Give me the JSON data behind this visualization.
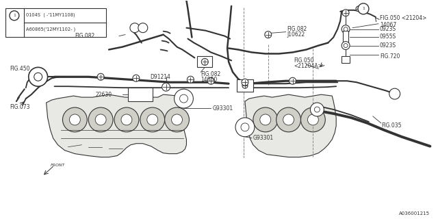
{
  "bg_color": "#ffffff",
  "line_color": "#333333",
  "lw_pipe": 1.8,
  "lw_thin": 0.8,
  "lw_dashed": 0.7,
  "part_number": "A036001215",
  "legend": {
    "line1": "0104S  (-'11MY1108)",
    "line2": "A60865('12MY1102-)"
  },
  "font_size": 5.5
}
